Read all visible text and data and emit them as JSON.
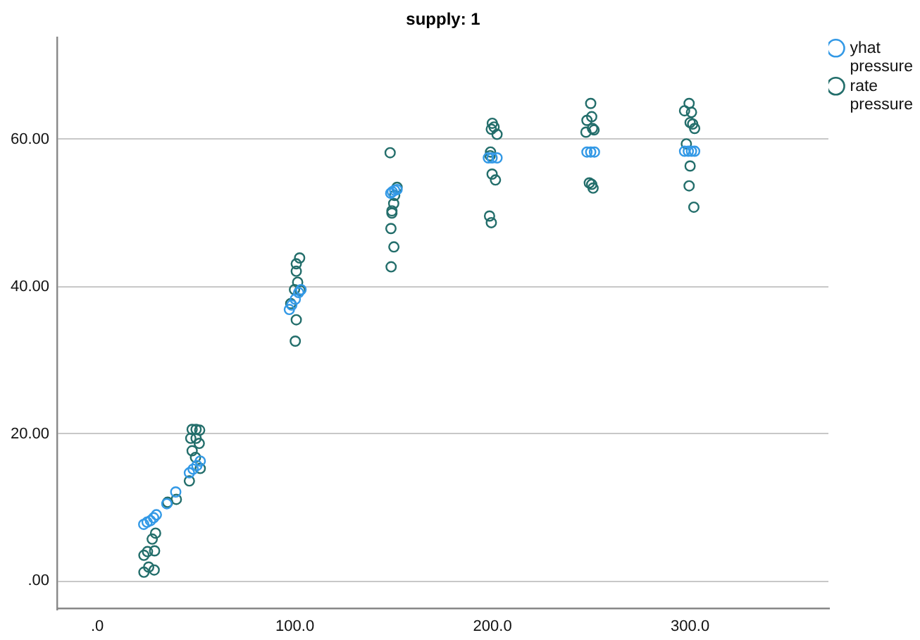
{
  "chart_data": {
    "type": "scatter",
    "title": "supply: 1",
    "series": [
      {
        "name": "yhat pressure",
        "color": "#3399e6",
        "x": [
          23.5,
          25.2,
          26.9,
          28.5,
          29.9,
          35.2,
          39.7,
          46.6,
          48.5,
          50.4,
          52.1,
          97.2,
          98.4,
          100.2,
          101.9,
          103.1,
          148.5,
          149.3,
          150.5,
          151.7,
          197.9,
          199.8,
          202.3,
          247.8,
          249.7,
          251.6,
          297.2,
          299.1,
          300.7,
          302.3
        ],
        "values": [
          7.7,
          8.0,
          8.2,
          8.6,
          9.0,
          10.5,
          12.1,
          14.7,
          15.2,
          15.7,
          16.3,
          36.9,
          37.5,
          38.3,
          39.2,
          39.6,
          52.7,
          52.9,
          53.1,
          53.2,
          57.5,
          57.5,
          57.5,
          58.3,
          58.3,
          58.3,
          58.4,
          58.4,
          58.4,
          58.4
        ]
      },
      {
        "name": "rate pressure",
        "color": "#236e6b",
        "x": [
          23.6,
          26.0,
          28.8,
          23.6,
          25.4,
          29.0,
          27.8,
          29.5,
          35.6,
          40.0,
          48.0,
          50.0,
          51.8,
          47.3,
          50.0,
          51.6,
          48.0,
          49.7,
          52.1,
          46.6,
          102.4,
          100.7,
          100.7,
          101.4,
          99.8,
          102.6,
          97.9,
          100.7,
          100.2,
          148.2,
          151.7,
          150.5,
          150.0,
          149.1,
          149.1,
          148.6,
          150.1,
          148.7,
          199.9,
          200.8,
          199.4,
          202.3,
          199.0,
          198.8,
          199.8,
          201.5,
          198.5,
          199.4,
          249.7,
          250.2,
          247.8,
          247.3,
          250.6,
          251.4,
          249.0,
          250.2,
          250.9,
          299.5,
          297.2,
          300.7,
          300.0,
          301.3,
          302.3,
          298.1,
          300.0,
          299.5,
          301.9
        ],
        "values": [
          1.2,
          1.9,
          1.5,
          3.5,
          4.0,
          4.1,
          5.7,
          6.5,
          10.7,
          11.1,
          20.6,
          20.6,
          20.5,
          19.4,
          19.4,
          18.7,
          17.7,
          16.8,
          15.3,
          13.6,
          43.9,
          43.1,
          42.1,
          40.6,
          39.6,
          39.5,
          37.7,
          35.5,
          32.6,
          58.2,
          53.5,
          52.4,
          51.3,
          50.3,
          50.0,
          47.9,
          45.4,
          42.7,
          62.2,
          61.7,
          61.4,
          60.7,
          58.3,
          57.8,
          55.3,
          54.5,
          49.6,
          48.7,
          64.9,
          63.1,
          62.6,
          61.0,
          61.5,
          61.3,
          54.1,
          53.9,
          53.4,
          64.9,
          63.9,
          63.7,
          62.3,
          62.1,
          61.5,
          59.4,
          56.4,
          53.7,
          50.8
        ]
      }
    ],
    "xlim": [
      -20,
      370
    ],
    "xticks": [
      {
        "value": 0,
        "label": ".0"
      },
      {
        "value": 100,
        "label": "100.0"
      },
      {
        "value": 200,
        "label": "200.0"
      },
      {
        "value": 300,
        "label": "300.0"
      }
    ],
    "ylim": [
      -3.8,
      73.9
    ],
    "yticks": [
      {
        "value": 0,
        "label": ".00"
      },
      {
        "value": 20,
        "label": "20.00"
      },
      {
        "value": 40,
        "label": "40.00"
      },
      {
        "value": 60,
        "label": "60.00"
      }
    ],
    "grid": "y",
    "legend": "top right",
    "marker": "circle"
  }
}
